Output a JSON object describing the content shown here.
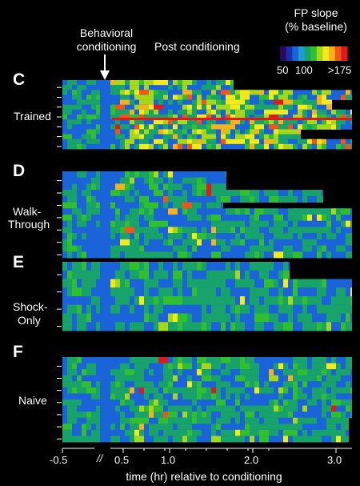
{
  "chart_data": {
    "type": "heatmap",
    "colorbar": {
      "title_line1": "FP slope",
      "title_line2": "(% baseline)",
      "tick_labels": [
        "50",
        "100",
        ">175"
      ],
      "colors": [
        "#2b0a5e",
        "#1a2fb0",
        "#1b63d8",
        "#1f9bd6",
        "#17a36a",
        "#2fbf2f",
        "#a6d81a",
        "#f2ea1a",
        "#f5b21a",
        "#f0561a",
        "#e01a1a"
      ]
    },
    "annotations": {
      "behavioral_conditioning_line1": "Behavioral",
      "behavioral_conditioning_line2": "conditioning",
      "post_conditioning": "Post conditioning"
    },
    "x_axis": {
      "label": "time (hr) relative to conditioning",
      "tick_labels": [
        "-0.5",
        "0.5",
        "1.0",
        "2.0",
        "3.0"
      ],
      "tick_values": [
        -0.5,
        0.5,
        1.0,
        2.0,
        3.0
      ],
      "break_marks": "//"
    },
    "panels": [
      {
        "letter": "C",
        "label_lines": [
          "Trained"
        ],
        "rows": 14,
        "mean_level": 0.62,
        "hot_fraction": 0.35
      },
      {
        "letter": "D",
        "label_lines": [
          "Walk-",
          "Through"
        ],
        "rows": 14,
        "mean_level": 0.25,
        "hot_fraction": 0.05
      },
      {
        "letter": "E",
        "label_lines": [
          "Shock-",
          "Only"
        ],
        "rows": 8,
        "mean_level": 0.28,
        "hot_fraction": 0.03
      },
      {
        "letter": "F",
        "label_lines": [
          "Naive"
        ],
        "rows": 14,
        "mean_level": 0.3,
        "hot_fraction": 0.05
      }
    ]
  }
}
